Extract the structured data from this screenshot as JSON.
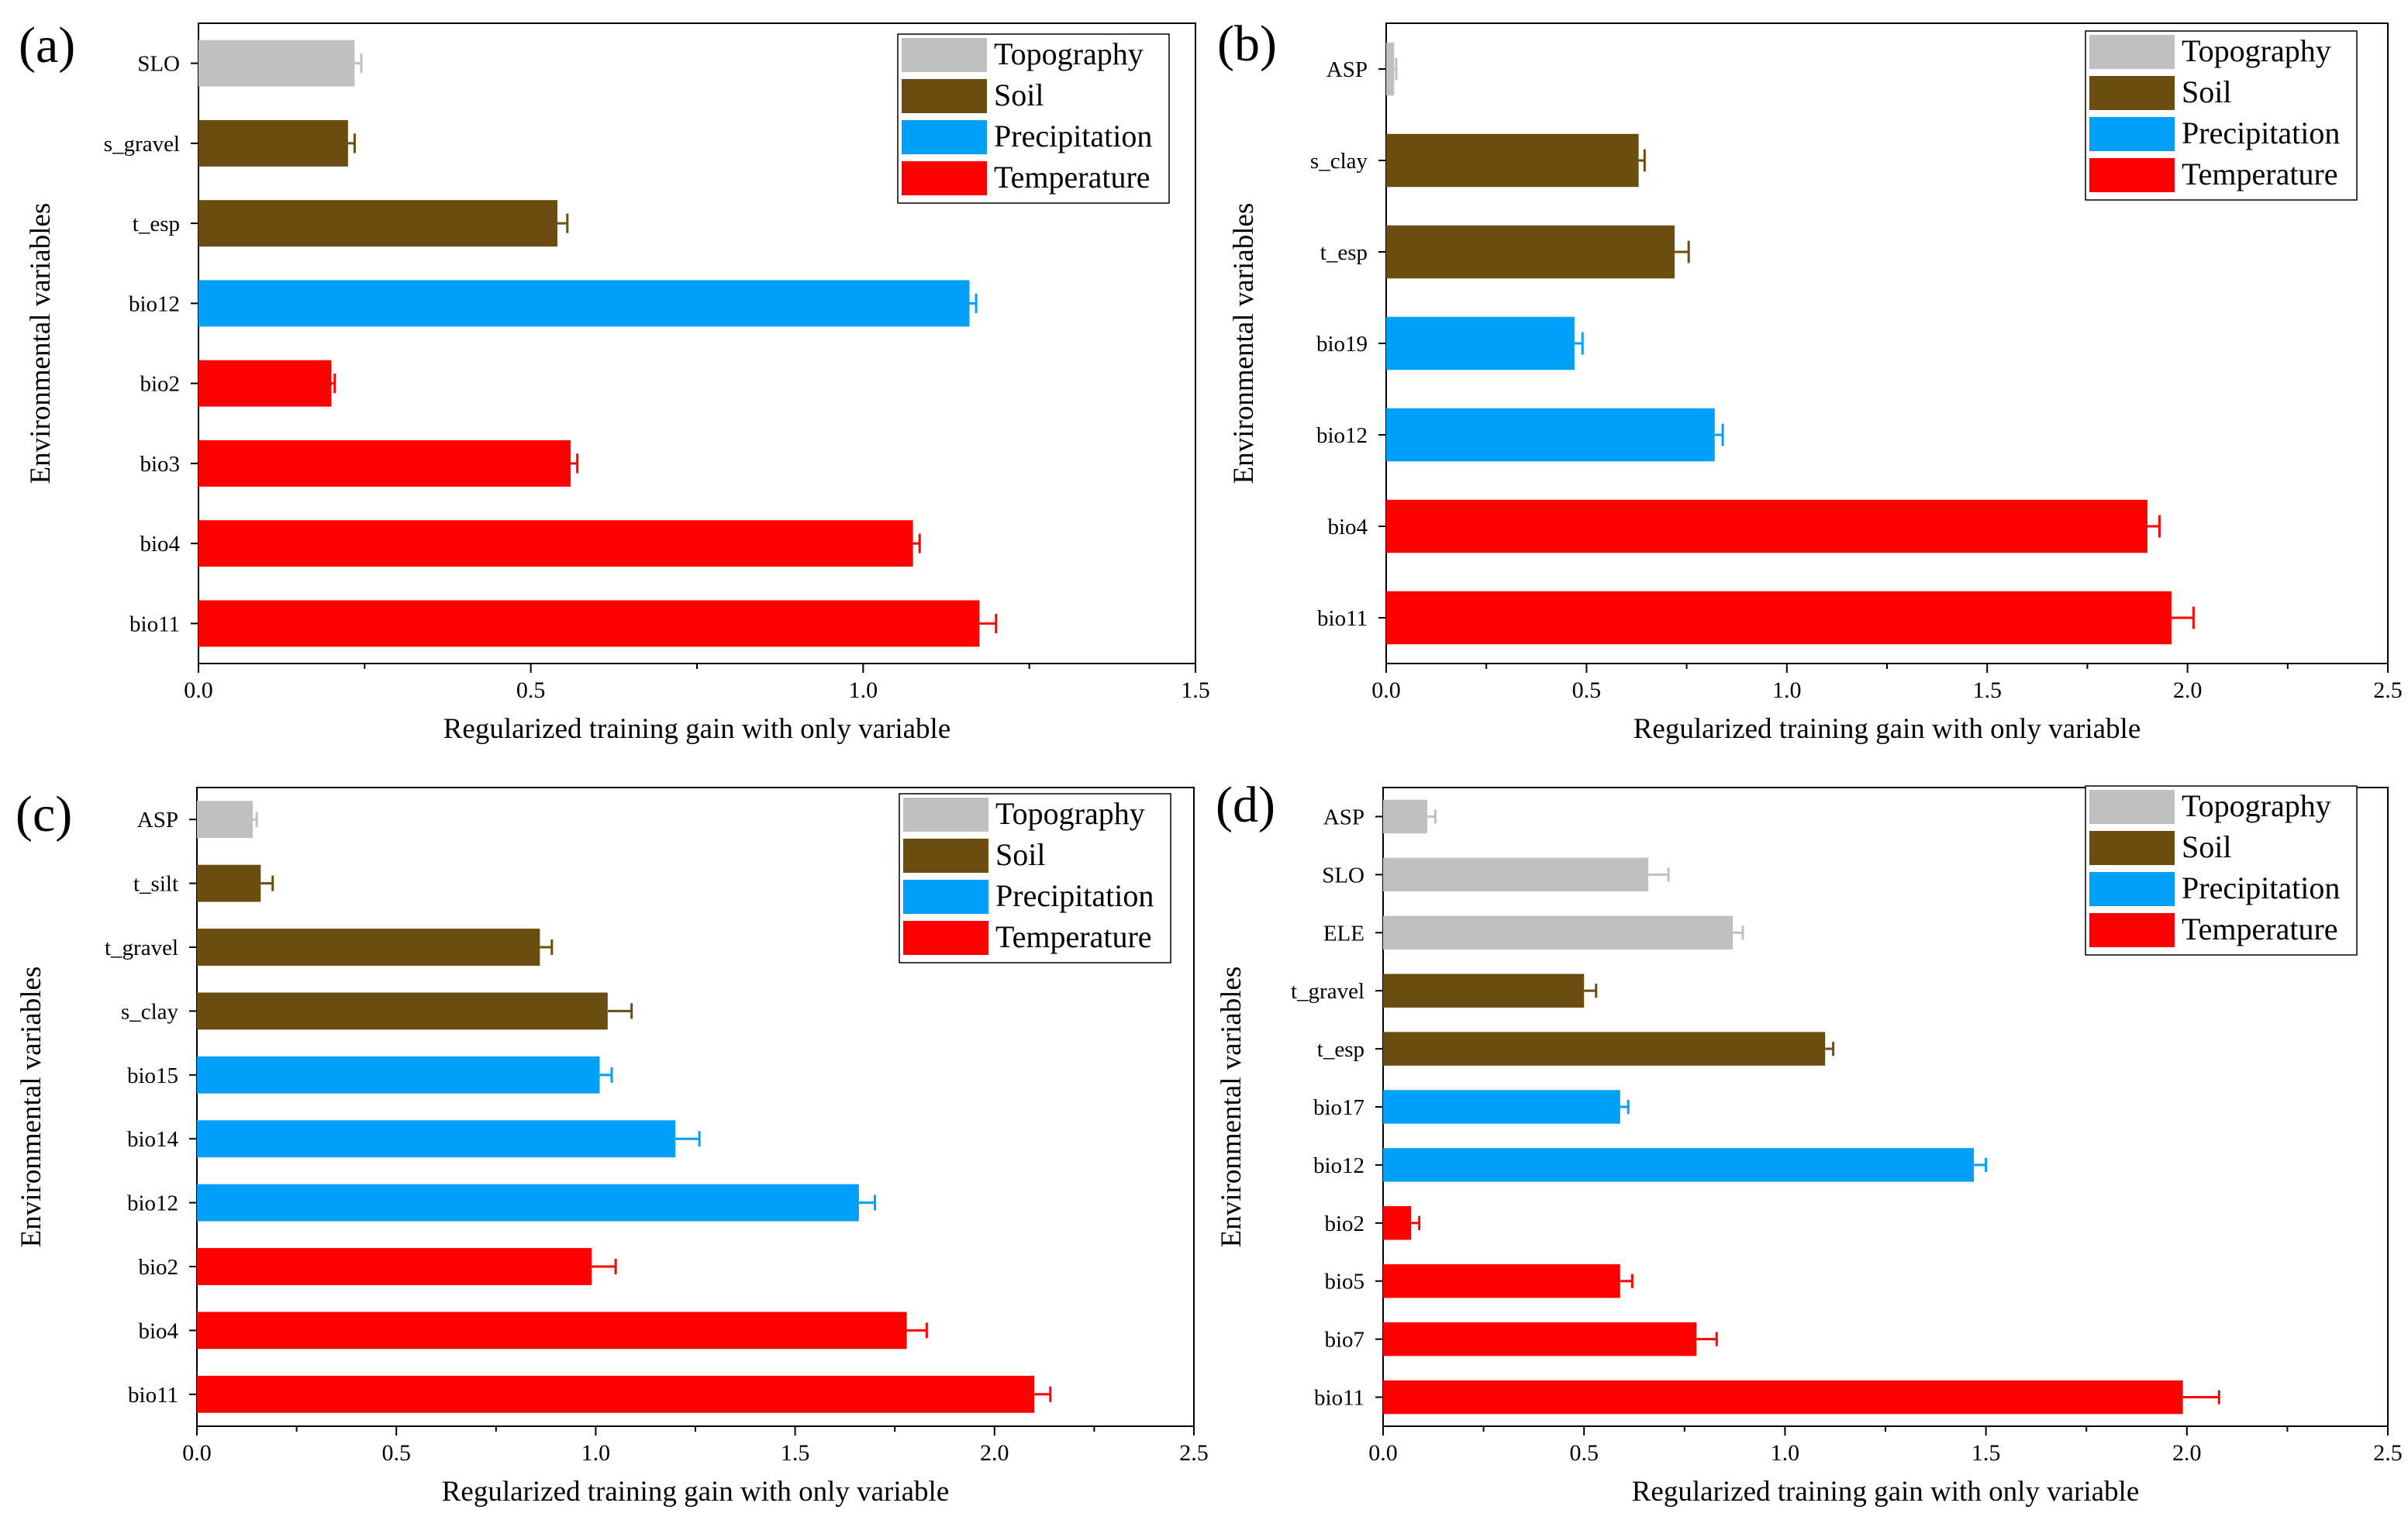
{
  "xlabel": "Regularized training gain with only variable",
  "ylabel": "Environmental variables",
  "legend": [
    {
      "label": "Topography",
      "color": "#c0c0c0"
    },
    {
      "label": "Soil",
      "color": "#6b4c11"
    },
    {
      "label": "Precipitation",
      "color": "#00a0f8"
    },
    {
      "label": "Temperature",
      "color": "#ff0000"
    }
  ],
  "chart_data": [
    {
      "type": "bar",
      "orientation": "horizontal",
      "panel": "(a)",
      "xlim": [
        0,
        1.5
      ],
      "xticks": [
        "0.0",
        "0.5",
        "1.0",
        "1.5"
      ],
      "xlabel": "Regularized training gain with only variable",
      "ylabel": "Environmental variables",
      "legend_position": "top-right",
      "categories": [
        "SLO",
        "s_gravel",
        "t_esp",
        "bio12",
        "bio2",
        "bio3",
        "bio4",
        "bio11"
      ],
      "groups": [
        "Topography",
        "Soil",
        "Soil",
        "Precipitation",
        "Temperature",
        "Temperature",
        "Temperature",
        "Temperature"
      ],
      "values": [
        0.235,
        0.225,
        0.54,
        1.16,
        0.2,
        0.56,
        1.075,
        1.175
      ],
      "errors": [
        0.01,
        0.01,
        0.015,
        0.01,
        0.005,
        0.01,
        0.01,
        0.025
      ]
    },
    {
      "type": "bar",
      "orientation": "horizontal",
      "panel": "(b)",
      "xlim": [
        0,
        2.5
      ],
      "xticks": [
        "0.0",
        "0.5",
        "1.0",
        "1.5",
        "2.0",
        "2.5"
      ],
      "xlabel": "Regularized training gain with only variable",
      "ylabel": "Environmental variables",
      "legend_position": "top-right",
      "categories": [
        "ASP",
        "s_clay",
        "t_esp",
        "bio19",
        "bio12",
        "bio4",
        "bio11"
      ],
      "groups": [
        "Topography",
        "Soil",
        "Soil",
        "Precipitation",
        "Precipitation",
        "Temperature",
        "Temperature"
      ],
      "values": [
        0.02,
        0.63,
        0.72,
        0.47,
        0.82,
        1.9,
        1.96
      ],
      "errors": [
        0.005,
        0.015,
        0.035,
        0.02,
        0.02,
        0.03,
        0.055
      ]
    },
    {
      "type": "bar",
      "orientation": "horizontal",
      "panel": "(c)",
      "xlim": [
        0,
        2.5
      ],
      "xticks": [
        "0.0",
        "0.5",
        "1.0",
        "1.5",
        "2.0",
        "2.5"
      ],
      "xlabel": "Regularized training gain with only variable",
      "ylabel": "Environmental variables",
      "legend_position": "top-right",
      "categories": [
        "ASP",
        "t_silt",
        "t_gravel",
        "s_clay",
        "bio15",
        "bio14",
        "bio12",
        "bio2",
        "bio4",
        "bio11"
      ],
      "groups": [
        "Topography",
        "Soil",
        "Soil",
        "Soil",
        "Precipitation",
        "Precipitation",
        "Precipitation",
        "Temperature",
        "Temperature",
        "Temperature"
      ],
      "values": [
        0.14,
        0.16,
        0.86,
        1.03,
        1.01,
        1.2,
        1.66,
        0.99,
        1.78,
        2.1
      ],
      "errors": [
        0.01,
        0.03,
        0.03,
        0.06,
        0.03,
        0.06,
        0.04,
        0.06,
        0.05,
        0.04
      ]
    },
    {
      "type": "bar",
      "orientation": "horizontal",
      "panel": "(d)",
      "xlim": [
        0,
        2.5
      ],
      "xticks": [
        "0.0",
        "0.5",
        "1.0",
        "1.5",
        "2.0",
        "2.5"
      ],
      "xlabel": "Regularized training gain with only variable",
      "ylabel": "Environmental variables",
      "legend_position": "top-right",
      "categories": [
        "ASP",
        "SLO",
        "ELE",
        "t_gravel",
        "t_esp",
        "bio17",
        "bio12",
        "bio2",
        "bio5",
        "bio7",
        "bio11"
      ],
      "groups": [
        "Topography",
        "Topography",
        "Topography",
        "Soil",
        "Soil",
        "Precipitation",
        "Precipitation",
        "Temperature",
        "Temperature",
        "Temperature",
        "Temperature"
      ],
      "values": [
        0.11,
        0.66,
        0.87,
        0.5,
        1.1,
        0.59,
        1.47,
        0.07,
        0.59,
        0.78,
        1.99
      ],
      "errors": [
        0.02,
        0.05,
        0.025,
        0.03,
        0.02,
        0.02,
        0.03,
        0.02,
        0.03,
        0.05,
        0.09
      ]
    }
  ]
}
